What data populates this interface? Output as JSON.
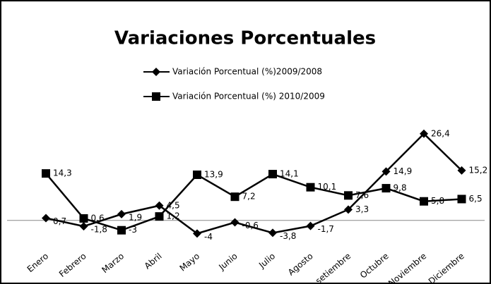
{
  "chart_data": {
    "type": "line",
    "title": "Variaciones Porcentuales",
    "categories": [
      "Enero",
      "Febrero",
      "Marzo",
      "Abril",
      "Mayo",
      "Junio",
      "Julio",
      "Agosto",
      "setiembre",
      "Octubre",
      "Noviembre",
      "Diciembre"
    ],
    "series": [
      {
        "name": "Variación Porcentual (%)2009/2008",
        "color": "#000000",
        "marker": "diamond",
        "values": [
          0.7,
          -1.8,
          1.9,
          4.5,
          -4,
          -0.6,
          -3.8,
          -1.7,
          3.3,
          14.9,
          26.4,
          15.2
        ],
        "value_labels": [
          "0,7",
          "-1,8",
          "1,9",
          "4,5",
          "-4",
          "-0,6",
          "-3,8",
          "-1,7",
          "3,3",
          "14,9",
          "26,4",
          "15,2"
        ]
      },
      {
        "name": "Variación Porcentual (%) 2010/2009",
        "color": "#000000",
        "marker": "square",
        "values": [
          14.3,
          0.6,
          -3,
          1.2,
          13.9,
          7.2,
          14.1,
          10.1,
          7.6,
          9.8,
          5.8,
          6.5
        ],
        "value_labels": [
          "14,3",
          "0,6",
          "-3",
          "1,2",
          "13,9",
          "7,2",
          "14,1",
          "10,1",
          "7,6",
          "9,8",
          "5,8",
          "6,5"
        ]
      }
    ],
    "ylim": [
      -8,
      30
    ],
    "yticks": [
      0
    ],
    "grid": true,
    "legend": "top"
  }
}
